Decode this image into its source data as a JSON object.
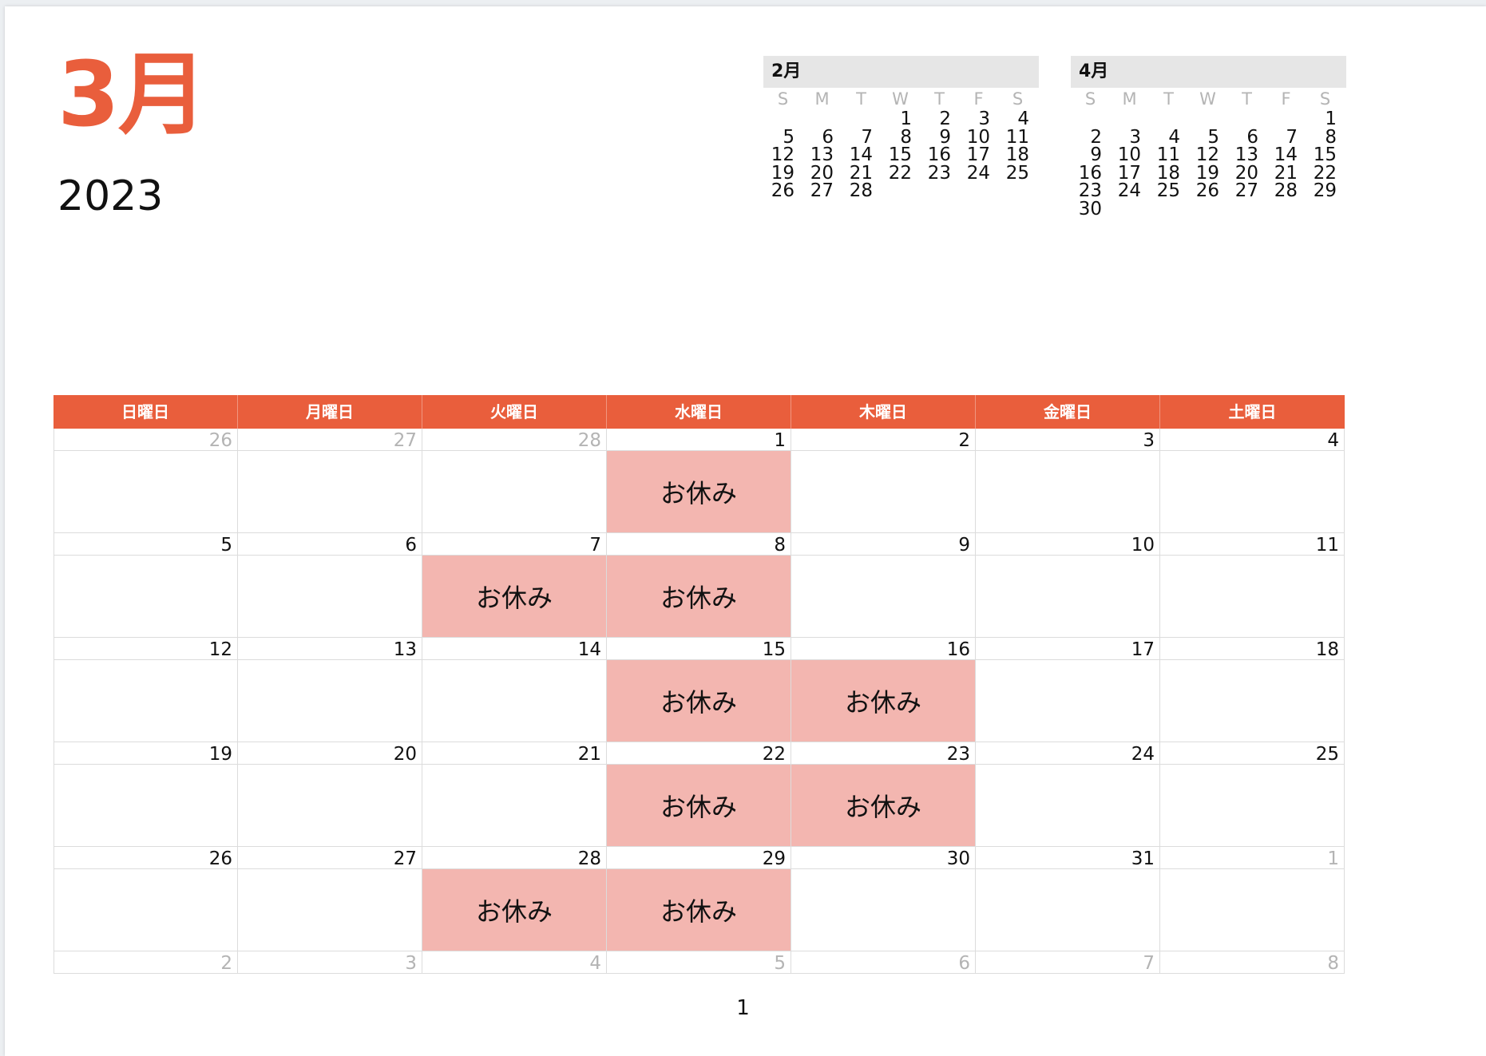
{
  "header": {
    "month": "3月",
    "year": "2023"
  },
  "colors": {
    "accent": "#e95e3c",
    "event_bg": "#f3b6b0",
    "grid_line": "#dcdcdc",
    "dim_text": "#b4b4b4",
    "mini_header_bg": "#e6e6e6"
  },
  "mini_calendars": [
    {
      "title": "2月",
      "dow": [
        "S",
        "M",
        "T",
        "W",
        "T",
        "F",
        "S"
      ],
      "weeks": [
        [
          "",
          "",
          "",
          "1",
          "2",
          "3",
          "4"
        ],
        [
          "5",
          "6",
          "7",
          "8",
          "9",
          "10",
          "11"
        ],
        [
          "12",
          "13",
          "14",
          "15",
          "16",
          "17",
          "18"
        ],
        [
          "19",
          "20",
          "21",
          "22",
          "23",
          "24",
          "25"
        ],
        [
          "26",
          "27",
          "28",
          "",
          "",
          "",
          ""
        ]
      ]
    },
    {
      "title": "4月",
      "dow": [
        "S",
        "M",
        "T",
        "W",
        "T",
        "F",
        "S"
      ],
      "weeks": [
        [
          "",
          "",
          "",
          "",
          "",
          "",
          "1"
        ],
        [
          "2",
          "3",
          "4",
          "5",
          "6",
          "7",
          "8"
        ],
        [
          "9",
          "10",
          "11",
          "12",
          "13",
          "14",
          "15"
        ],
        [
          "16",
          "17",
          "18",
          "19",
          "20",
          "21",
          "22"
        ],
        [
          "23",
          "24",
          "25",
          "26",
          "27",
          "28",
          "29"
        ],
        [
          "30",
          "",
          "",
          "",
          "",
          "",
          ""
        ]
      ]
    }
  ],
  "weekdays": [
    "日曜日",
    "月曜日",
    "火曜日",
    "水曜日",
    "木曜日",
    "金曜日",
    "土曜日"
  ],
  "weeks": [
    [
      {
        "day": "26",
        "dim": true
      },
      {
        "day": "27",
        "dim": true
      },
      {
        "day": "28",
        "dim": true
      },
      {
        "day": "1",
        "event": "お休み"
      },
      {
        "day": "2"
      },
      {
        "day": "3"
      },
      {
        "day": "4"
      }
    ],
    [
      {
        "day": "5"
      },
      {
        "day": "6"
      },
      {
        "day": "7",
        "event": "お休み"
      },
      {
        "day": "8",
        "event": "お休み"
      },
      {
        "day": "9"
      },
      {
        "day": "10"
      },
      {
        "day": "11"
      }
    ],
    [
      {
        "day": "12"
      },
      {
        "day": "13"
      },
      {
        "day": "14"
      },
      {
        "day": "15",
        "event": "お休み"
      },
      {
        "day": "16",
        "event": "お休み"
      },
      {
        "day": "17"
      },
      {
        "day": "18"
      }
    ],
    [
      {
        "day": "19"
      },
      {
        "day": "20"
      },
      {
        "day": "21"
      },
      {
        "day": "22",
        "event": "お休み"
      },
      {
        "day": "23",
        "event": "お休み"
      },
      {
        "day": "24"
      },
      {
        "day": "25"
      }
    ],
    [
      {
        "day": "26"
      },
      {
        "day": "27"
      },
      {
        "day": "28",
        "event": "お休み"
      },
      {
        "day": "29",
        "event": "お休み"
      },
      {
        "day": "30"
      },
      {
        "day": "31"
      },
      {
        "day": "1",
        "dim": true
      }
    ]
  ],
  "trailing": [
    "2",
    "3",
    "4",
    "5",
    "6",
    "7",
    "8"
  ],
  "footer": {
    "page_number": "1"
  }
}
